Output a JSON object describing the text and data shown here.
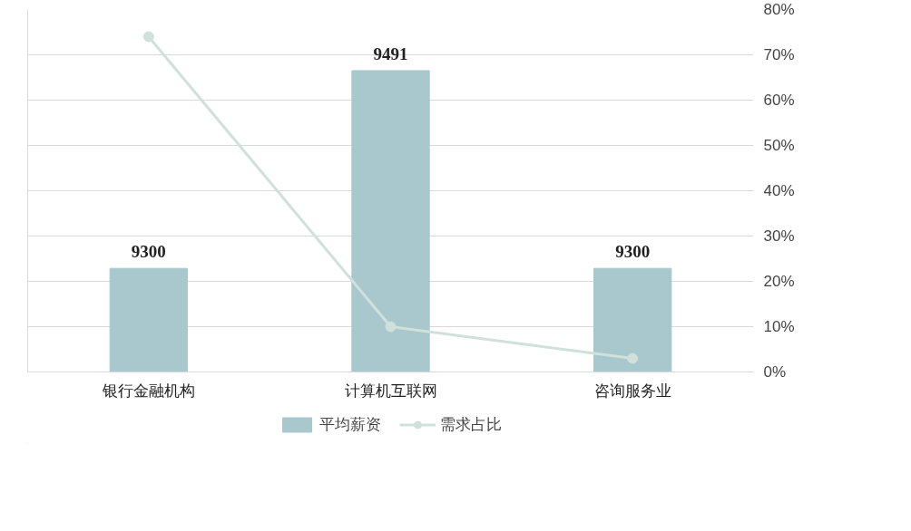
{
  "chart_data": {
    "type": "bar",
    "categories": [
      "银行金融机构",
      "计算机互联网",
      "咨询服务业"
    ],
    "series": [
      {
        "name": "平均薪资",
        "color": "#a8c8cd",
        "values": [
          9300,
          9491,
          9300
        ],
        "data_labels": true
      },
      {
        "name": "需求占比",
        "type": "line",
        "axis": "y2",
        "color": "#cfe1da",
        "values": [
          74,
          10,
          3
        ],
        "marker": "circle"
      }
    ],
    "ylim": [
      9200,
      9550
    ],
    "y2lim": [
      0,
      80
    ],
    "y2ticks": [
      {
        "value": 0,
        "label": "0%"
      },
      {
        "value": 10,
        "label": "10%"
      },
      {
        "value": 20,
        "label": "20%"
      },
      {
        "value": 30,
        "label": "30%"
      },
      {
        "value": 40,
        "label": "40%"
      },
      {
        "value": 50,
        "label": "50%"
      },
      {
        "value": 60,
        "label": "60%"
      },
      {
        "value": 70,
        "label": "70%"
      },
      {
        "value": 80,
        "label": "80%"
      }
    ],
    "grid": "y",
    "legend": "bottom"
  }
}
